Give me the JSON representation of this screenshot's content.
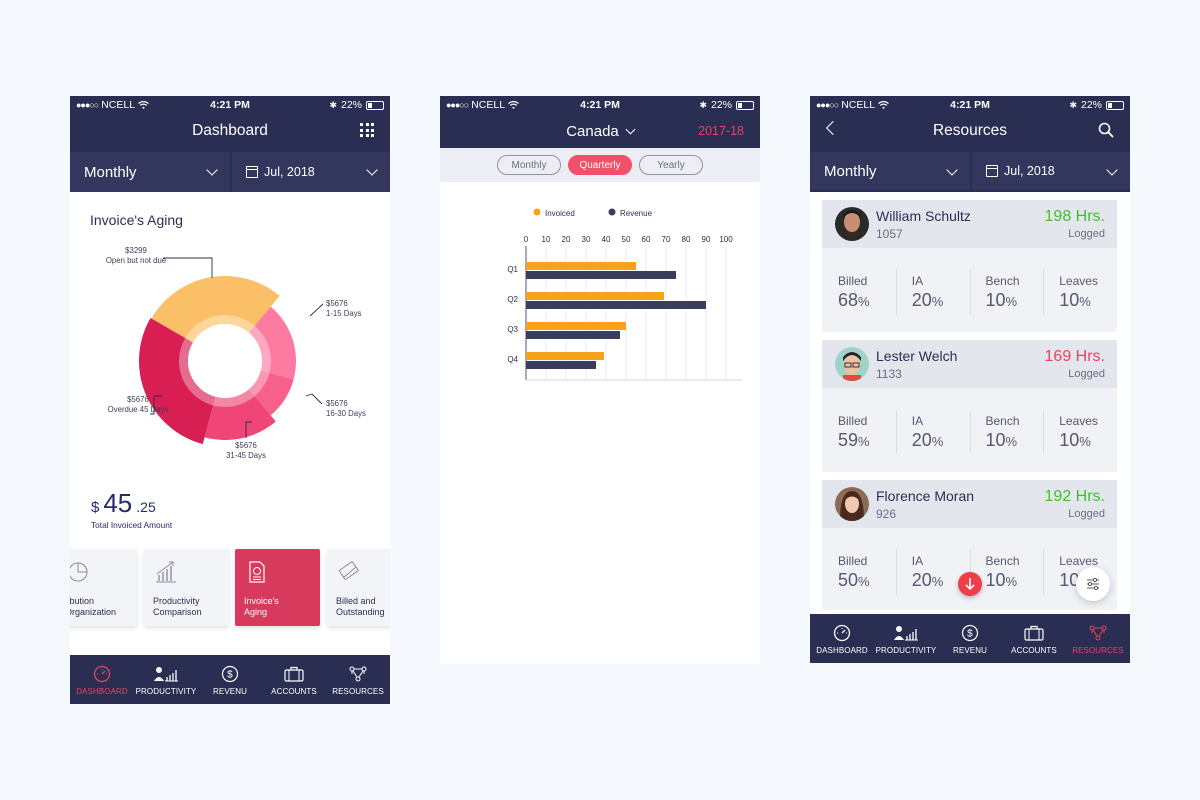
{
  "status": {
    "carrier": "NCELL",
    "dots": "●●●○○",
    "time": "4:21 PM",
    "battery": "22%"
  },
  "colors": {
    "navy": "#2b2e53",
    "accent": "#e8435f",
    "green": "#3fbf2b",
    "red": "#f1405e",
    "orange": "#f6a21a"
  },
  "nav": [
    {
      "label": "DASHBOARD",
      "icon": "gauge-icon"
    },
    {
      "label": "PRODUCTIVITY",
      "icon": "people-chart-icon"
    },
    {
      "label": "REVENU",
      "icon": "dollar-icon"
    },
    {
      "label": "ACCOUNTS",
      "icon": "briefcase-icon"
    },
    {
      "label": "RESOURCES",
      "icon": "network-icon"
    }
  ],
  "dashboard": {
    "title": "Dashboard",
    "period": "Monthly",
    "date": "Jul, 2018",
    "chart_title": "Invoice's Aging",
    "currency": "$",
    "amount_main": "45",
    "amount_cents": ".25",
    "amount_label": "Total Invoiced Amount",
    "slices": [
      {
        "value": "$3299",
        "label": "Open but not due",
        "color": "#fbc067"
      },
      {
        "value": "$5676",
        "label": "1-15 Days",
        "color": "#fd7aa0"
      },
      {
        "value": "$5676",
        "label": "16-30 Days",
        "color": "#f7608a"
      },
      {
        "value": "$5676",
        "label": "31-45 Days",
        "color": "#ef4577"
      },
      {
        "value": "$5676",
        "label": "Overdue 45 Days",
        "color": "#d81e52"
      }
    ],
    "cards": [
      {
        "line1": "ontribution",
        "line2": "Organization",
        "icon": "pie-chart-icon"
      },
      {
        "line1": "Productivity",
        "line2": "Comparison",
        "icon": "growth-chart-icon"
      },
      {
        "line1": "Invoice's",
        "line2": "Aging",
        "icon": "invoice-icon"
      },
      {
        "line1": "Billed and",
        "line2": "Outstanding",
        "icon": "card-icon"
      }
    ]
  },
  "revenue": {
    "country": "Canada",
    "year": "2017-18",
    "segments": [
      "Monthly",
      "Quarterly",
      "Yearly"
    ],
    "active_segment": "Quarterly"
  },
  "chart_data": {
    "type": "bar",
    "orientation": "horizontal",
    "categories": [
      "Q1",
      "Q2",
      "Q3",
      "Q4"
    ],
    "series": [
      {
        "name": "Invoiced",
        "values": [
          55,
          69,
          50,
          39
        ],
        "color": "#f6a21a"
      },
      {
        "name": "Revenue",
        "values": [
          75,
          90,
          47,
          35
        ],
        "color": "#3a3d5c"
      }
    ],
    "x_ticks": [
      0,
      10,
      20,
      30,
      40,
      50,
      60,
      70,
      80,
      90,
      100
    ],
    "xlim": [
      0,
      100
    ],
    "legend": "top",
    "grid": true
  },
  "resources": {
    "title": "Resources",
    "period": "Monthly",
    "date": "Jul, 2018",
    "stat_labels": [
      "Billed",
      "IA",
      "Bench",
      "Leaves"
    ],
    "people": [
      {
        "name": "William Schultz",
        "id": "1057",
        "hours": "198 Hrs.",
        "logged": "Logged",
        "hours_color": "#3fbf2b",
        "stats": [
          "68",
          "20",
          "10",
          "10"
        ]
      },
      {
        "name": "Lester Welch",
        "id": "1133",
        "hours": "169 Hrs.",
        "logged": "Logged",
        "hours_color": "#f1405e",
        "stats": [
          "59",
          "20",
          "10",
          "10"
        ]
      },
      {
        "name": "Florence Moran",
        "id": "926",
        "hours": "192 Hrs.",
        "logged": "Logged",
        "hours_color": "#3fbf2b",
        "stats": [
          "50",
          "20",
          "10",
          "10"
        ]
      }
    ],
    "pct": "%"
  }
}
